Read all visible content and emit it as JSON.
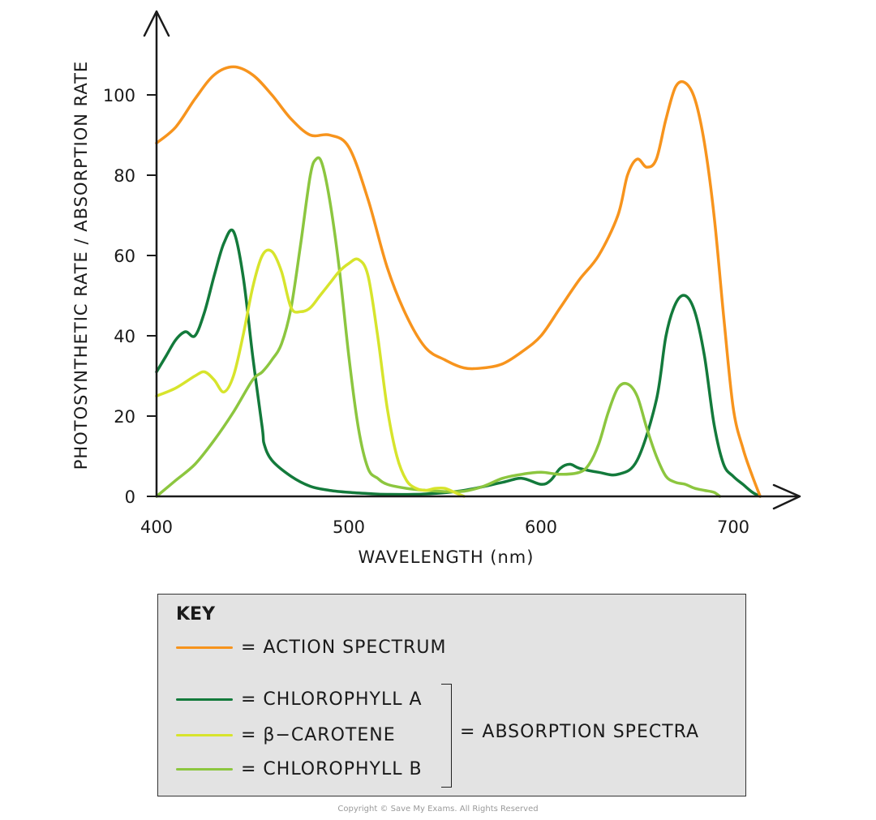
{
  "chart_data": {
    "type": "line",
    "xlabel": "WAVELENGTH (nm)",
    "ylabel": "PHOTOSYNTHETIC RATE / ABSORPTION RATE",
    "xlim": [
      400,
      736
    ],
    "ylim": [
      0,
      115
    ],
    "xticks": [
      400,
      500,
      600,
      700
    ],
    "yticks": [
      0,
      20,
      40,
      60,
      80,
      100
    ],
    "grid": false,
    "legend_position": "bottom",
    "series": [
      {
        "name": "ACTION SPECTRUM",
        "color": "#f7941d",
        "x": [
          400,
          410,
          420,
          430,
          440,
          450,
          460,
          470,
          480,
          490,
          500,
          510,
          520,
          530,
          540,
          550,
          560,
          570,
          580,
          590,
          600,
          610,
          620,
          630,
          640,
          645,
          650,
          655,
          660,
          665,
          670,
          675,
          680,
          685,
          690,
          695,
          700,
          705,
          710,
          714
        ],
        "y": [
          88,
          92,
          99,
          105,
          107,
          105,
          100,
          94,
          90,
          90,
          87,
          74,
          57,
          45,
          37,
          34,
          32,
          32,
          33,
          36,
          40,
          47,
          54,
          60,
          70,
          80,
          84,
          82,
          84,
          94,
          102,
          103,
          99,
          88,
          70,
          45,
          22,
          12,
          5,
          0
        ]
      },
      {
        "name": "CHLOROPHYLL A",
        "color": "#137a3b",
        "x": [
          400,
          405,
          410,
          415,
          420,
          425,
          430,
          435,
          440,
          445,
          450,
          455,
          456,
          460,
          470,
          480,
          490,
          500,
          510,
          520,
          540,
          560,
          580,
          590,
          600,
          605,
          610,
          615,
          620,
          630,
          640,
          650,
          660,
          665,
          670,
          675,
          680,
          685,
          690,
          695,
          700,
          705,
          710,
          714
        ],
        "y": [
          31,
          35,
          39,
          41,
          40,
          46,
          55,
          63,
          66,
          55,
          35,
          17,
          13,
          9,
          5,
          2.5,
          1.5,
          1,
          0.7,
          0.5,
          0.6,
          1.5,
          3.5,
          4.5,
          3,
          4,
          7,
          8,
          7,
          6,
          5.5,
          9,
          24,
          40,
          48,
          50,
          46,
          35,
          18,
          8,
          5,
          3,
          1,
          0
        ]
      },
      {
        "name": "β-CAROTENE",
        "color": "#d7e42c",
        "x": [
          400,
          410,
          420,
          425,
          430,
          435,
          440,
          445,
          450,
          455,
          460,
          465,
          470,
          475,
          480,
          485,
          490,
          495,
          500,
          505,
          510,
          515,
          520,
          525,
          530,
          535,
          540,
          545,
          550,
          555,
          560
        ],
        "y": [
          25,
          27,
          30,
          31,
          29,
          26,
          30,
          40,
          52,
          60,
          61,
          56,
          47,
          46,
          47,
          50,
          53,
          56,
          58,
          59,
          55,
          40,
          22,
          10,
          4,
          2,
          1.5,
          2,
          2,
          1,
          0
        ]
      },
      {
        "name": "CHLOROPHYLL B",
        "color": "#8cc63f",
        "x": [
          400,
          410,
          420,
          430,
          440,
          450,
          455,
          460,
          465,
          470,
          475,
          480,
          483,
          486,
          490,
          495,
          500,
          505,
          510,
          515,
          520,
          530,
          540,
          550,
          560,
          570,
          580,
          590,
          600,
          610,
          620,
          625,
          630,
          635,
          640,
          645,
          650,
          655,
          660,
          665,
          670,
          675,
          680,
          685,
          690,
          693
        ],
        "y": [
          0,
          4,
          8,
          14,
          21,
          29,
          31,
          34,
          38,
          47,
          63,
          80,
          84,
          83,
          74,
          57,
          35,
          17,
          7,
          4.5,
          3,
          2,
          1.5,
          1.2,
          1.3,
          2.5,
          4.5,
          5.5,
          6,
          5.5,
          6,
          8,
          13,
          21,
          27,
          28,
          25,
          17,
          10,
          5,
          3.5,
          3,
          2,
          1.5,
          1,
          0
        ]
      }
    ]
  },
  "key": {
    "title": "KEY",
    "items": [
      {
        "label": "= ACTION SPECTRUM",
        "color": "#f7941d"
      },
      {
        "label": "= CHLOROPHYLL A",
        "color": "#137a3b"
      },
      {
        "label": "= β−CAROTENE",
        "color": "#d7e42c"
      },
      {
        "label": "= CHLOROPHYLL B",
        "color": "#8cc63f"
      }
    ],
    "group_label": "= ABSORPTION SPECTRA"
  },
  "copyright": "Copyright © Save My Exams. All Rights Reserved"
}
